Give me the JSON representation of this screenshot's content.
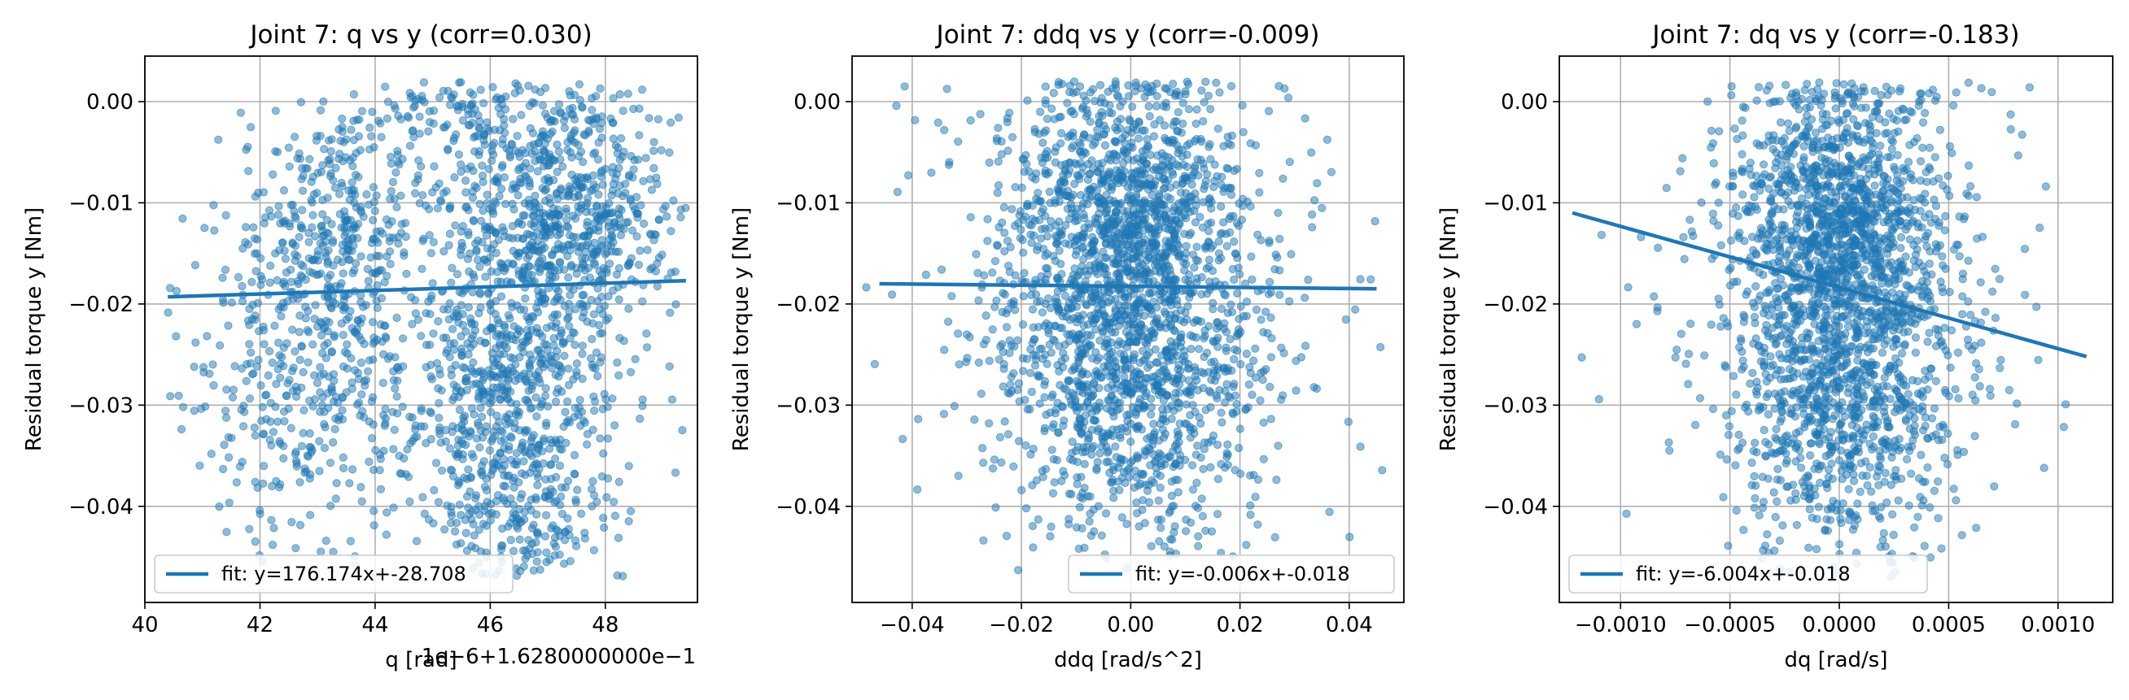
{
  "chart_data": [
    {
      "type": "scatter",
      "title": "Joint 7: q vs y (corr=0.030)",
      "xlabel": "q [rad]",
      "ylabel": "Residual torque y [Nm]",
      "offset_text": "1e−6+1.6280000000e−1",
      "xlim": [
        40,
        49.6
      ],
      "ylim": [
        -0.0495,
        0.0045
      ],
      "xticks": [
        40,
        42,
        44,
        46,
        48
      ],
      "xtick_labels": [
        "40",
        "42",
        "44",
        "46",
        "48"
      ],
      "yticks": [
        0.0,
        -0.01,
        -0.02,
        -0.03,
        -0.04
      ],
      "ytick_labels": [
        "0.00",
        "−0.01",
        "−0.02",
        "−0.03",
        "−0.04"
      ],
      "grid": true,
      "legend_position": "lower-left",
      "series": [
        {
          "name": "fit: y=176.174x+-28.708",
          "kind": "line",
          "x": [
            40.4,
            49.4
          ],
          "y": [
            -0.0193,
            -0.0177
          ]
        }
      ],
      "clusters": [
        {
          "cx": 43.2,
          "cy": -0.014,
          "sx": 0.9,
          "sy": 0.006,
          "n": 380
        },
        {
          "cx": 42.8,
          "cy": -0.03,
          "sx": 1.0,
          "sy": 0.007,
          "n": 250
        },
        {
          "cx": 47.2,
          "cy": -0.011,
          "sx": 1.0,
          "sy": 0.006,
          "n": 700
        },
        {
          "cx": 46.4,
          "cy": -0.03,
          "sx": 0.9,
          "sy": 0.007,
          "n": 600
        },
        {
          "cx": 45.8,
          "cy": -0.002,
          "sx": 1.1,
          "sy": 0.003,
          "n": 150
        },
        {
          "cx": 46.6,
          "cy": -0.041,
          "sx": 0.7,
          "sy": 0.004,
          "n": 120
        },
        {
          "cx": 44.5,
          "cy": -0.022,
          "sx": 2.2,
          "sy": 0.011,
          "n": 200
        }
      ],
      "sample_points": 2400
    },
    {
      "type": "scatter",
      "title": "Joint 7: ddq vs y (corr=-0.009)",
      "xlabel": "ddq [rad/s^2]",
      "ylabel": "Residual torque y [Nm]",
      "xlim": [
        -0.051,
        0.05
      ],
      "ylim": [
        -0.0495,
        0.0045
      ],
      "xticks": [
        -0.04,
        -0.02,
        0.0,
        0.02,
        0.04
      ],
      "xtick_labels": [
        "−0.04",
        "−0.02",
        "0.00",
        "0.02",
        "0.04"
      ],
      "yticks": [
        0.0,
        -0.01,
        -0.02,
        -0.03,
        -0.04
      ],
      "ytick_labels": [
        "0.00",
        "−0.01",
        "−0.02",
        "−0.03",
        "−0.04"
      ],
      "grid": true,
      "legend_position": "lower-right",
      "series": [
        {
          "name": "fit: y=-0.006x+-0.018",
          "kind": "line",
          "x": [
            -0.046,
            0.045
          ],
          "y": [
            -0.018,
            -0.0185
          ]
        }
      ],
      "clusters": [
        {
          "cx": 0.0,
          "cy": -0.012,
          "sx": 0.011,
          "sy": 0.007,
          "n": 1100
        },
        {
          "cx": 0.0,
          "cy": -0.028,
          "sx": 0.011,
          "sy": 0.008,
          "n": 900
        },
        {
          "cx": 0.0,
          "cy": -0.018,
          "sx": 0.022,
          "sy": 0.012,
          "n": 350
        }
      ],
      "sample_points": 2350
    },
    {
      "type": "scatter",
      "title": "Joint 7: dq vs y (corr=-0.183)",
      "xlabel": "dq [rad/s]",
      "ylabel": "Residual torque y [Nm]",
      "xlim": [
        -0.00128,
        0.00125
      ],
      "ylim": [
        -0.0495,
        0.0045
      ],
      "xticks": [
        -0.001,
        -0.0005,
        0.0,
        0.0005,
        0.001
      ],
      "xtick_labels": [
        "−0.0010",
        "−0.0005",
        "0.0000",
        "0.0005",
        "0.0010"
      ],
      "yticks": [
        0.0,
        -0.01,
        -0.02,
        -0.03,
        -0.04
      ],
      "ytick_labels": [
        "0.00",
        "−0.01",
        "−0.02",
        "−0.03",
        "−0.04"
      ],
      "grid": true,
      "legend_position": "lower-left",
      "series": [
        {
          "name": "fit: y=-6.004x+-0.018",
          "kind": "line",
          "x": [
            -0.00122,
            0.00113
          ],
          "y": [
            -0.011,
            -0.0252
          ]
        }
      ],
      "clusters": [
        {
          "cx": 0.0,
          "cy": -0.012,
          "sx": 0.00024,
          "sy": 0.007,
          "n": 1100
        },
        {
          "cx": 0.0,
          "cy": -0.029,
          "sx": 0.00025,
          "sy": 0.008,
          "n": 900
        },
        {
          "cx": 0.0,
          "cy": -0.018,
          "sx": 0.00045,
          "sy": 0.012,
          "n": 350
        }
      ],
      "sample_points": 2350
    }
  ],
  "colors": {
    "scatter": "#1f77b4",
    "fit_line": "#1f77b4",
    "grid": "#b0b0b0",
    "axes": "#000000",
    "legend_border": "#cccccc"
  }
}
